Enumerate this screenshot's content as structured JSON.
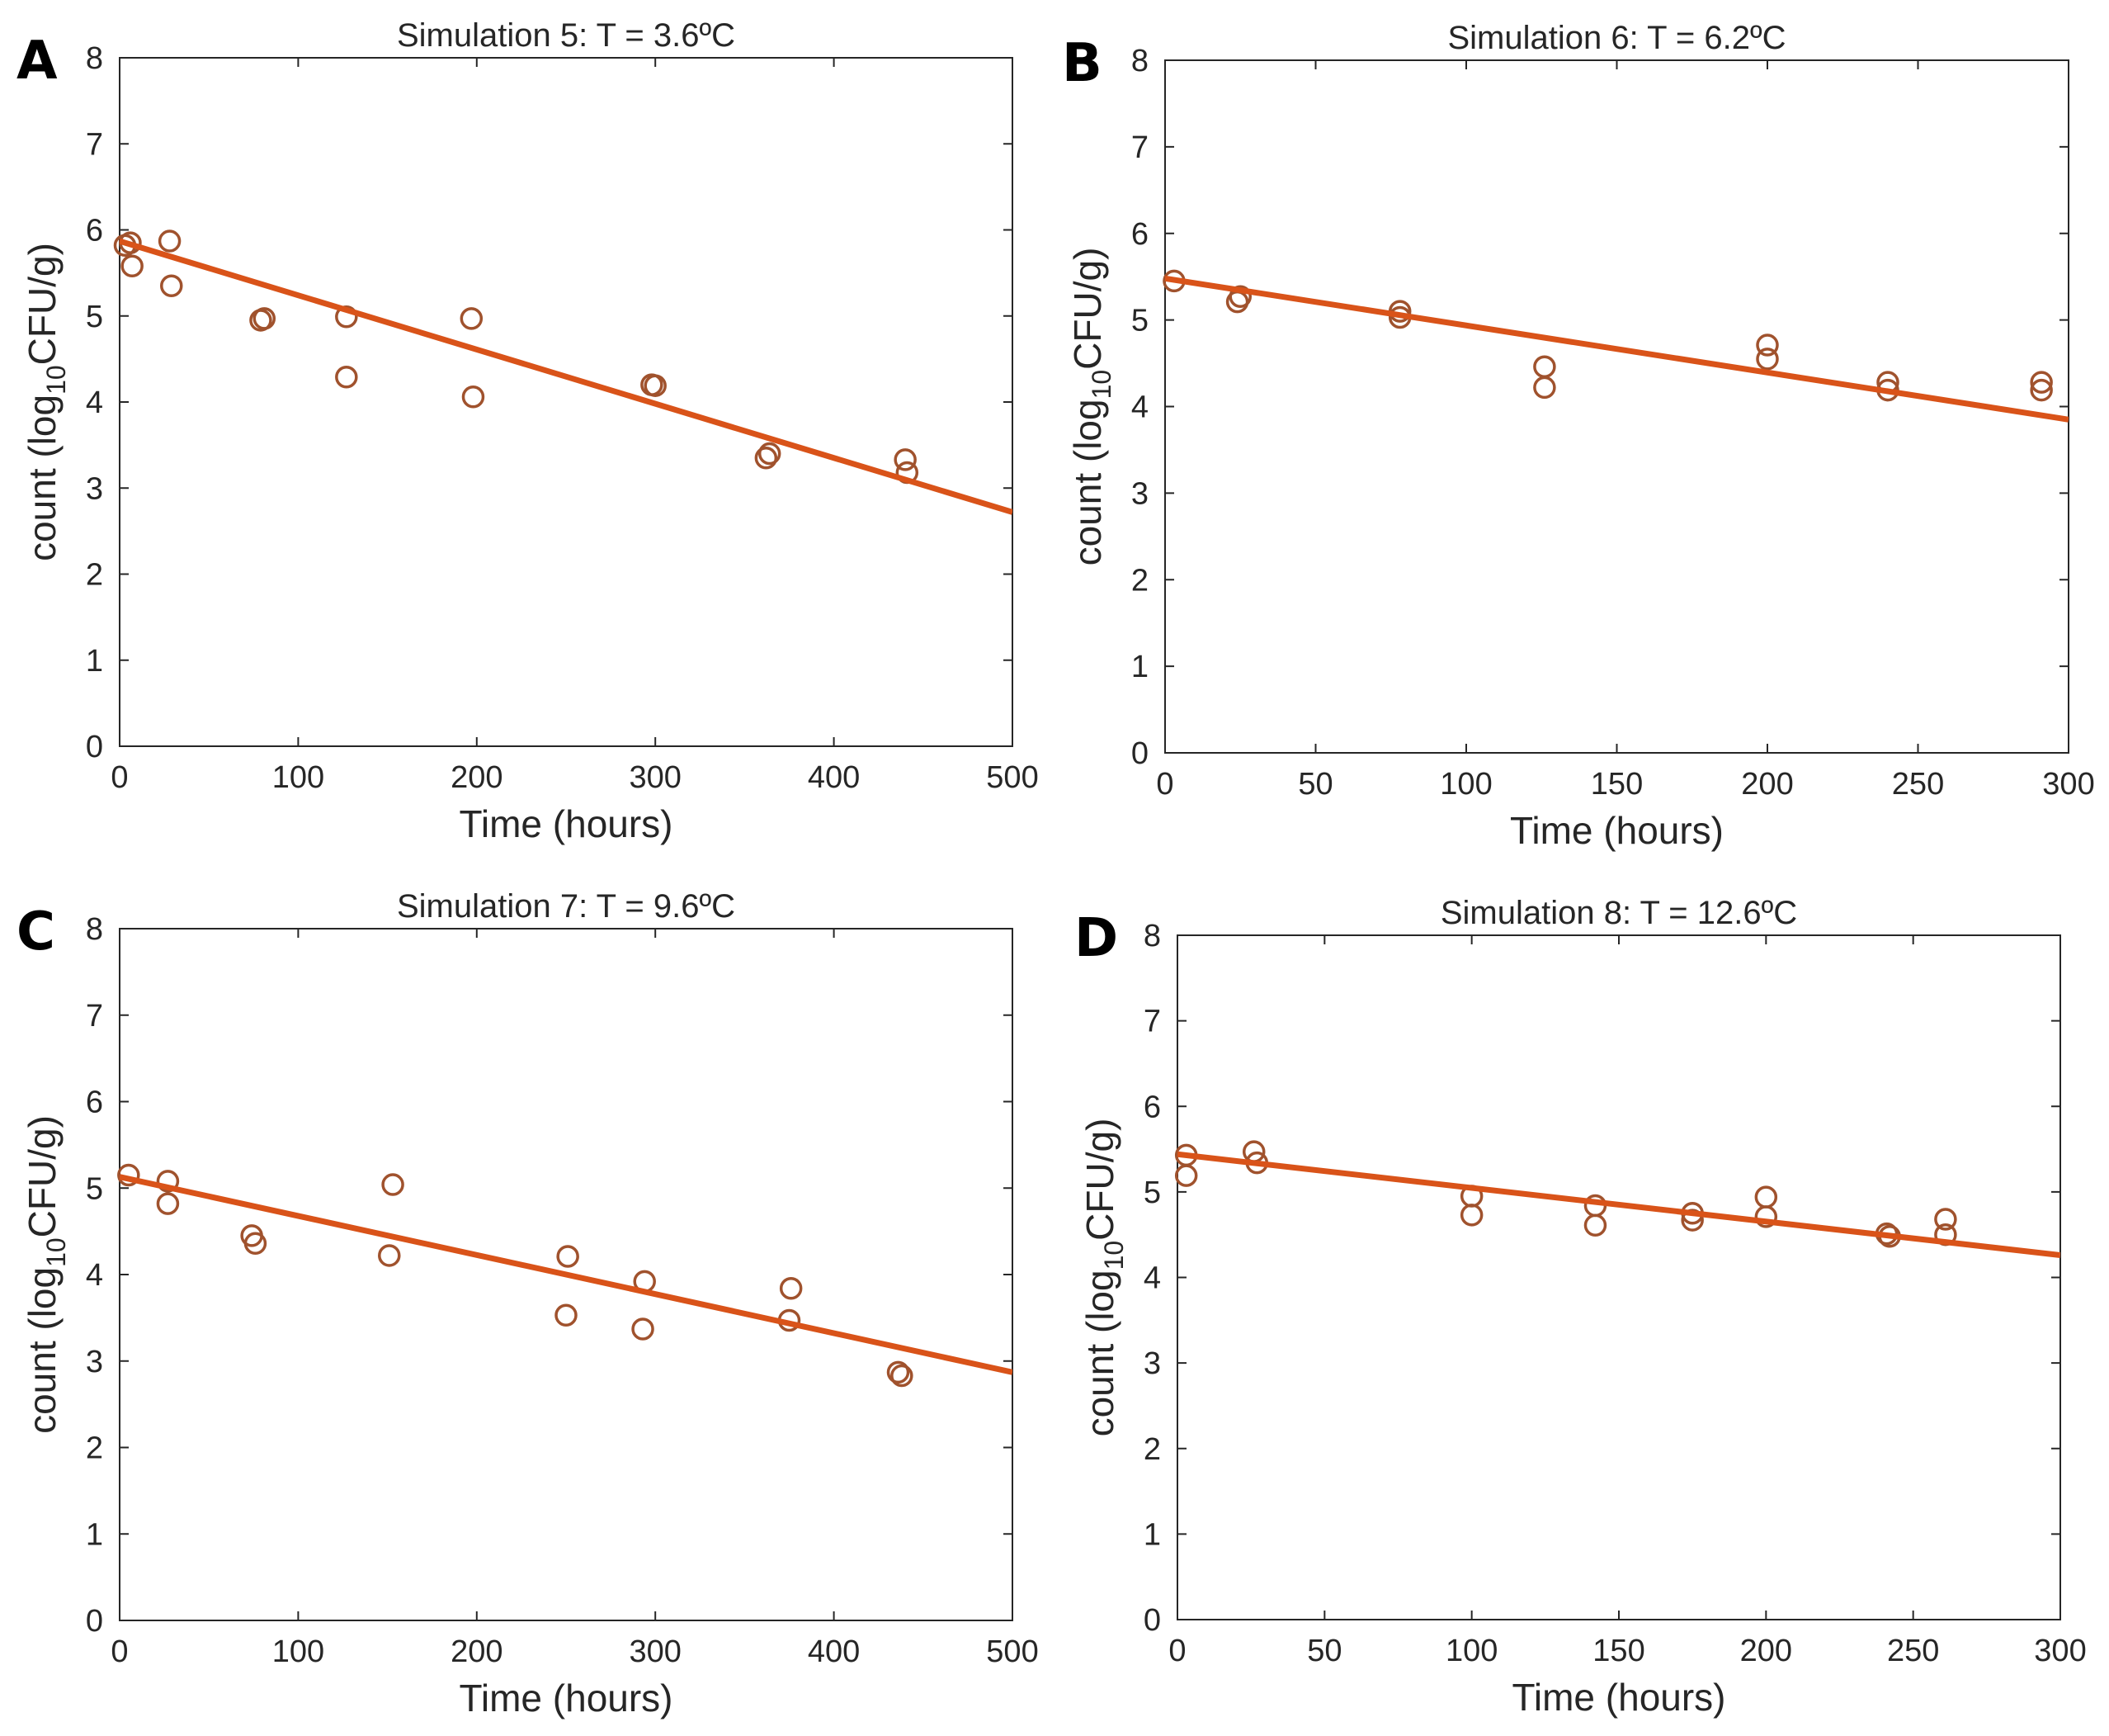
{
  "colors": {
    "marker": "#A0522D",
    "fit_line": "#D95319",
    "axis": "#262626"
  },
  "chart_data": [
    {
      "panel_label": "A",
      "type": "scatter",
      "title": "Simulation 5: T = 3.6ºC",
      "xlabel": "Time (hours)",
      "ylabel": {
        "pre": "count (log",
        "sub": "10",
        "post": "CFU/g)"
      },
      "xlim": [
        0,
        500
      ],
      "ylim": [
        0,
        8
      ],
      "xticks": [
        "0",
        "100",
        "200",
        "300",
        "400",
        "500"
      ],
      "yticks": [
        "0",
        "1",
        "2",
        "3",
        "4",
        "5",
        "6",
        "7",
        "8"
      ],
      "grid": false,
      "series": [
        {
          "name": "observed",
          "x": [
            3,
            6,
            7,
            28,
            29,
            79,
            81,
            127,
            127,
            197,
            198,
            298,
            300,
            362,
            364,
            440,
            441
          ],
          "y": [
            5.82,
            5.85,
            5.58,
            5.87,
            5.35,
            4.95,
            4.97,
            4.99,
            4.29,
            4.97,
            4.06,
            4.2,
            4.19,
            3.35,
            3.4,
            3.33,
            3.18
          ]
        },
        {
          "name": "model fit",
          "line": true,
          "x": [
            0,
            500
          ],
          "y": [
            5.87,
            2.72
          ]
        }
      ]
    },
    {
      "panel_label": "B",
      "type": "scatter",
      "title": "Simulation 6: T = 6.2ºC",
      "xlabel": "Time (hours)",
      "ylabel": {
        "pre": "count (log",
        "sub": "10",
        "post": "CFU/g)"
      },
      "xlim": [
        0,
        300
      ],
      "ylim": [
        0,
        8
      ],
      "xticks": [
        "0",
        "50",
        "100",
        "150",
        "200",
        "250",
        "300"
      ],
      "yticks": [
        "0",
        "1",
        "2",
        "3",
        "4",
        "5",
        "6",
        "7",
        "8"
      ],
      "grid": false,
      "series": [
        {
          "name": "observed",
          "x": [
            3,
            24,
            25,
            78,
            78,
            126,
            126,
            200,
            200,
            240,
            240,
            291,
            291
          ],
          "y": [
            5.45,
            5.21,
            5.27,
            5.1,
            5.03,
            4.46,
            4.22,
            4.71,
            4.55,
            4.28,
            4.19,
            4.28,
            4.19
          ]
        },
        {
          "name": "model fit",
          "line": true,
          "x": [
            0,
            300
          ],
          "y": [
            5.48,
            3.85
          ]
        }
      ]
    },
    {
      "panel_label": "C",
      "type": "scatter",
      "title": "Simulation 7: T = 9.6ºC",
      "xlabel": "Time (hours)",
      "ylabel": {
        "pre": "count (log",
        "sub": "10",
        "post": "CFU/g)"
      },
      "xlim": [
        0,
        500
      ],
      "ylim": [
        0,
        8
      ],
      "xticks": [
        "0",
        "100",
        "200",
        "300",
        "400",
        "500"
      ],
      "yticks": [
        "0",
        "1",
        "2",
        "3",
        "4",
        "5",
        "6",
        "7",
        "8"
      ],
      "grid": false,
      "series": [
        {
          "name": "observed",
          "x": [
            5,
            27,
            27,
            74,
            76,
            151,
            153,
            250,
            251,
            293,
            294,
            375,
            376,
            436,
            438
          ],
          "y": [
            5.15,
            5.08,
            4.82,
            4.45,
            4.36,
            4.22,
            5.04,
            3.53,
            4.21,
            3.37,
            3.92,
            3.47,
            3.84,
            2.87,
            2.83
          ]
        },
        {
          "name": "model fit",
          "line": true,
          "x": [
            0,
            500
          ],
          "y": [
            5.13,
            2.87
          ]
        }
      ]
    },
    {
      "panel_label": "D",
      "type": "scatter",
      "title": "Simulation 8: T = 12.6ºC",
      "xlabel": "Time (hours)",
      "ylabel": {
        "pre": "count (log",
        "sub": "10",
        "post": "CFU/g)"
      },
      "xlim": [
        0,
        300
      ],
      "ylim": [
        0,
        8
      ],
      "xticks": [
        "0",
        "50",
        "100",
        "150",
        "200",
        "250",
        "300"
      ],
      "yticks": [
        "0",
        "1",
        "2",
        "3",
        "4",
        "5",
        "6",
        "7",
        "8"
      ],
      "grid": false,
      "series": [
        {
          "name": "observed",
          "x": [
            3,
            3,
            26,
            27,
            100,
            100,
            142,
            142,
            175,
            175,
            200,
            200,
            241,
            242,
            261,
            261
          ],
          "y": [
            5.43,
            5.19,
            5.47,
            5.34,
            4.95,
            4.73,
            4.84,
            4.61,
            4.75,
            4.67,
            4.94,
            4.71,
            4.51,
            4.48,
            4.68,
            4.5
          ]
        },
        {
          "name": "model fit",
          "line": true,
          "x": [
            0,
            300
          ],
          "y": [
            5.44,
            4.26
          ]
        }
      ]
    }
  ]
}
